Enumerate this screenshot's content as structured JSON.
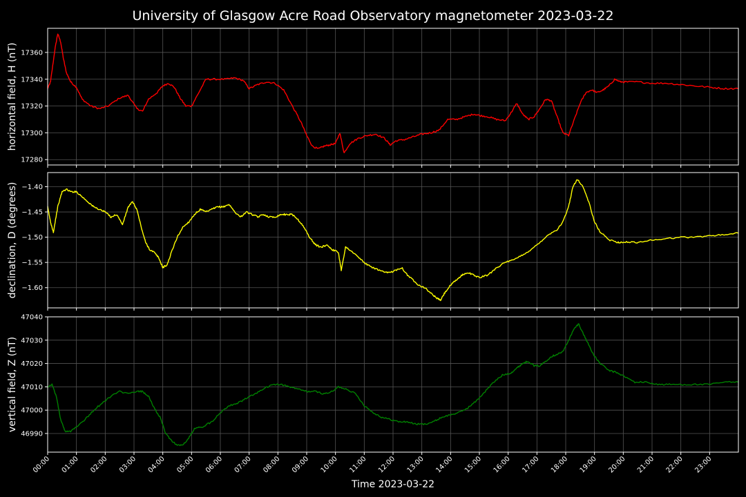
{
  "title": "University of Glasgow Acre Road Observatory magnetometer 2023-03-22",
  "chart_data": {
    "type": "line",
    "xlabel": "Time 2023-03-22",
    "x_ticks": [
      "00:00",
      "01:00",
      "02:00",
      "03:00",
      "04:00",
      "05:00",
      "06:00",
      "07:00",
      "08:00",
      "09:00",
      "10:00",
      "11:00",
      "12:00",
      "13:00",
      "14:00",
      "15:00",
      "16:00",
      "17:00",
      "18:00",
      "19:00",
      "20:00",
      "21:00",
      "22:00",
      "23:00"
    ],
    "xlim_hours": [
      0,
      24
    ],
    "grid": true,
    "panels": [
      {
        "name": "H",
        "ylabel": "horizontal field, H (nT)",
        "color": "#ff0000",
        "ylim": [
          17276,
          17378
        ],
        "y_ticks": [
          17280,
          17300,
          17320,
          17340,
          17360
        ],
        "x_hours": [
          0,
          0.1,
          0.25,
          0.35,
          0.45,
          0.55,
          0.65,
          0.8,
          1.0,
          1.2,
          1.5,
          1.8,
          2.1,
          2.5,
          2.8,
          3.1,
          3.3,
          3.5,
          3.8,
          4.0,
          4.2,
          4.4,
          4.6,
          4.8,
          5.0,
          5.2,
          5.5,
          5.8,
          6.2,
          6.5,
          6.8,
          7.0,
          7.3,
          7.6,
          7.9,
          8.2,
          8.5,
          8.8,
          9.0,
          9.2,
          9.4,
          9.6,
          9.8,
          10.0,
          10.15,
          10.3,
          10.5,
          10.8,
          11.1,
          11.4,
          11.7,
          11.9,
          12.1,
          12.4,
          12.7,
          13.0,
          13.3,
          13.6,
          13.9,
          14.2,
          14.5,
          14.8,
          15.0,
          15.3,
          15.6,
          15.9,
          16.1,
          16.3,
          16.5,
          16.7,
          16.9,
          17.1,
          17.3,
          17.5,
          17.7,
          17.9,
          18.1,
          18.3,
          18.5,
          18.7,
          18.9,
          19.1,
          19.3,
          19.5,
          19.7,
          19.9,
          20.1,
          20.5,
          21.0,
          21.5,
          22.0,
          22.5,
          23.0,
          23.5,
          24.0
        ],
        "values": [
          17333,
          17338,
          17362,
          17374,
          17368,
          17355,
          17345,
          17338,
          17334,
          17325,
          17320,
          17318,
          17320,
          17326,
          17328,
          17318,
          17316,
          17325,
          17330,
          17335,
          17337,
          17334,
          17326,
          17320,
          17320,
          17328,
          17340,
          17340,
          17340,
          17341,
          17339,
          17333,
          17336,
          17338,
          17337,
          17332,
          17320,
          17308,
          17298,
          17290,
          17288,
          17290,
          17291,
          17292,
          17300,
          17285,
          17292,
          17296,
          17298,
          17299,
          17296,
          17291,
          17294,
          17295,
          17297,
          17299,
          17300,
          17302,
          17310,
          17310,
          17312,
          17314,
          17313,
          17312,
          17310,
          17309,
          17315,
          17322,
          17314,
          17310,
          17312,
          17318,
          17325,
          17324,
          17312,
          17300,
          17298,
          17310,
          17322,
          17330,
          17332,
          17330,
          17332,
          17335,
          17340,
          17338,
          17338,
          17338,
          17337,
          17337,
          17336,
          17335,
          17334,
          17333,
          17333
        ]
      },
      {
        "name": "D",
        "ylabel": "declination, D (degrees)",
        "color": "#ffff00",
        "ylim": [
          -1.64,
          -1.372
        ],
        "y_ticks": [
          -1.4,
          -1.45,
          -1.5,
          -1.55,
          -1.6
        ],
        "y_tick_labels": [
          "−1.40",
          "−1.45",
          "−1.50",
          "−1.55",
          "−1.60"
        ],
        "x_hours": [
          0,
          0.1,
          0.2,
          0.35,
          0.5,
          0.65,
          0.8,
          1.0,
          1.2,
          1.4,
          1.6,
          1.8,
          2.0,
          2.2,
          2.4,
          2.6,
          2.8,
          2.95,
          3.1,
          3.25,
          3.4,
          3.55,
          3.7,
          3.85,
          4.0,
          4.15,
          4.3,
          4.5,
          4.7,
          4.9,
          5.1,
          5.3,
          5.5,
          5.7,
          5.9,
          6.1,
          6.3,
          6.5,
          6.7,
          6.9,
          7.1,
          7.3,
          7.5,
          7.7,
          7.9,
          8.1,
          8.3,
          8.5,
          8.7,
          8.9,
          9.1,
          9.3,
          9.5,
          9.7,
          9.9,
          10.1,
          10.2,
          10.35,
          10.5,
          10.7,
          10.9,
          11.1,
          11.3,
          11.5,
          11.7,
          11.9,
          12.1,
          12.3,
          12.5,
          12.7,
          12.9,
          13.1,
          13.3,
          13.5,
          13.65,
          13.8,
          14.0,
          14.2,
          14.4,
          14.6,
          14.8,
          15.0,
          15.3,
          15.6,
          15.9,
          16.2,
          16.5,
          16.8,
          17.1,
          17.4,
          17.7,
          17.9,
          18.1,
          18.25,
          18.4,
          18.6,
          18.8,
          19.0,
          19.2,
          19.5,
          19.8,
          20.0,
          20.3,
          20.6,
          21.0,
          21.5,
          22.0,
          22.5,
          23.0,
          23.5,
          24.0
        ],
        "values": [
          -1.44,
          -1.47,
          -1.49,
          -1.44,
          -1.41,
          -1.405,
          -1.41,
          -1.41,
          -1.42,
          -1.43,
          -1.44,
          -1.445,
          -1.45,
          -1.46,
          -1.455,
          -1.475,
          -1.44,
          -1.43,
          -1.445,
          -1.48,
          -1.51,
          -1.525,
          -1.53,
          -1.54,
          -1.56,
          -1.555,
          -1.53,
          -1.5,
          -1.48,
          -1.47,
          -1.455,
          -1.445,
          -1.45,
          -1.445,
          -1.44,
          -1.44,
          -1.435,
          -1.45,
          -1.46,
          -1.45,
          -1.455,
          -1.46,
          -1.455,
          -1.46,
          -1.46,
          -1.455,
          -1.455,
          -1.455,
          -1.465,
          -1.48,
          -1.5,
          -1.515,
          -1.52,
          -1.515,
          -1.525,
          -1.53,
          -1.565,
          -1.52,
          -1.525,
          -1.535,
          -1.545,
          -1.555,
          -1.56,
          -1.565,
          -1.57,
          -1.57,
          -1.565,
          -1.56,
          -1.575,
          -1.585,
          -1.595,
          -1.6,
          -1.61,
          -1.62,
          -1.625,
          -1.61,
          -1.595,
          -1.585,
          -1.575,
          -1.57,
          -1.575,
          -1.58,
          -1.575,
          -1.56,
          -1.55,
          -1.545,
          -1.535,
          -1.525,
          -1.51,
          -1.495,
          -1.485,
          -1.47,
          -1.44,
          -1.4,
          -1.385,
          -1.4,
          -1.43,
          -1.47,
          -1.49,
          -1.505,
          -1.51,
          -1.51,
          -1.51,
          -1.51,
          -1.505,
          -1.503,
          -1.5,
          -1.5,
          -1.497,
          -1.495,
          -1.492
        ]
      },
      {
        "name": "Z",
        "ylabel": "vertical field, Z (nT)",
        "color": "#008000",
        "ylim": [
          46982,
          47040
        ],
        "y_ticks": [
          46990,
          47000,
          47010,
          47020,
          47030,
          47040
        ],
        "x_hours": [
          0,
          0.15,
          0.3,
          0.45,
          0.6,
          0.8,
          1.0,
          1.3,
          1.6,
          1.9,
          2.2,
          2.5,
          2.8,
          3.1,
          3.3,
          3.5,
          3.7,
          3.9,
          4.1,
          4.3,
          4.5,
          4.7,
          4.9,
          5.1,
          5.4,
          5.7,
          6.0,
          6.3,
          6.6,
          6.9,
          7.2,
          7.5,
          7.8,
          8.1,
          8.4,
          8.7,
          9.0,
          9.3,
          9.6,
          9.9,
          10.1,
          10.4,
          10.7,
          11.0,
          11.3,
          11.6,
          11.9,
          12.2,
          12.5,
          12.8,
          13.1,
          13.4,
          13.7,
          14.0,
          14.3,
          14.6,
          14.9,
          15.2,
          15.5,
          15.8,
          16.1,
          16.3,
          16.5,
          16.7,
          16.9,
          17.1,
          17.3,
          17.5,
          17.7,
          17.9,
          18.1,
          18.3,
          18.45,
          18.6,
          18.8,
          19.0,
          19.2,
          19.5,
          19.8,
          20.1,
          20.4,
          20.8,
          21.2,
          21.6,
          22.0,
          22.5,
          23.0,
          23.5,
          24.0
        ],
        "values": [
          47010,
          47011,
          47006,
          46996,
          46991,
          46991,
          46993,
          46996,
          47000,
          47003,
          47006,
          47008,
          47007,
          47008,
          47008,
          47006,
          47001,
          46997,
          46990,
          46987,
          46985,
          46985,
          46988,
          46992,
          46993,
          46995,
          46999,
          47002,
          47003,
          47005,
          47007,
          47009,
          47011,
          47011,
          47010,
          47009,
          47008,
          47008,
          47007,
          47008,
          47010,
          47009,
          47007,
          47002,
          46999,
          46997,
          46996,
          46995,
          46995,
          46994,
          46994,
          46995,
          46997,
          46998,
          46999,
          47001,
          47004,
          47008,
          47012,
          47015,
          47016,
          47018,
          47020,
          47021,
          47019,
          47019,
          47021,
          47023,
          47024,
          47025,
          47030,
          47035,
          47037,
          47033,
          47028,
          47023,
          47020,
          47017,
          47016,
          47014,
          47012,
          47012,
          47011,
          47011,
          47011,
          47011,
          47011,
          47012,
          47012
        ]
      }
    ]
  }
}
